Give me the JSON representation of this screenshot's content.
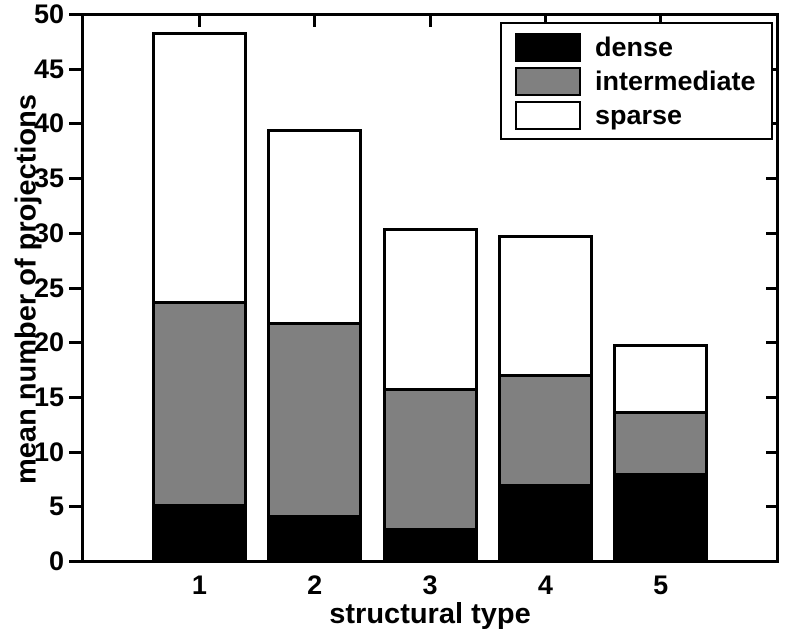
{
  "figure": {
    "xlabel": "structural type",
    "ylabel": "mean number of projections",
    "background_color": "#ffffff",
    "axis_color": "#000000"
  },
  "chart_data": {
    "type": "bar",
    "stacked": true,
    "title": "",
    "xlabel": "structural type",
    "ylabel": "mean number of projections",
    "categories": [
      "1",
      "2",
      "3",
      "4",
      "5"
    ],
    "series": [
      {
        "name": "dense",
        "color": "#000000",
        "values": [
          4.9,
          3.9,
          2.7,
          6.7,
          7.7
        ]
      },
      {
        "name": "intermediate",
        "color": "#808080",
        "values": [
          18.5,
          17.6,
          12.7,
          10.0,
          5.6
        ]
      },
      {
        "name": "sparse",
        "color": "#ffffff",
        "values": [
          24.6,
          17.6,
          14.6,
          12.6,
          6.0
        ]
      }
    ],
    "stack_totals": [
      48.0,
      39.1,
      30.0,
      29.3,
      19.3
    ],
    "ylim": [
      0,
      50
    ],
    "yticks": [
      0,
      5,
      10,
      15,
      20,
      25,
      30,
      35,
      40,
      45,
      50
    ],
    "grid": false,
    "legend_position": "top-right",
    "legend_entries": [
      "dense",
      "intermediate",
      "sparse"
    ]
  }
}
